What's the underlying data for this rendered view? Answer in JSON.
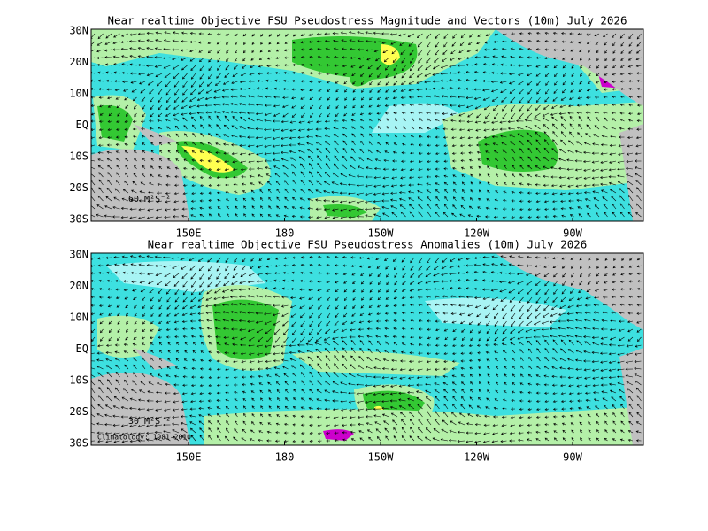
{
  "panels": [
    {
      "title": "Near realtime Objective FSU Pseudostress Magnitude and Vectors (10m) July 2026",
      "lat_labels": [
        "30N",
        "20N",
        "10N",
        "EQ",
        "10S",
        "20S",
        "30S"
      ],
      "lon_labels": [
        "150E",
        "180",
        "150W",
        "120W",
        "90W"
      ],
      "scale_label": "60 M²S⁻²"
    },
    {
      "title": "Near realtime Objective FSU Pseudostress Anomalies (10m) July 2026",
      "lat_labels": [
        "30N",
        "20N",
        "10N",
        "EQ",
        "10S",
        "20S",
        "30S"
      ],
      "lon_labels": [
        "150E",
        "180",
        "150W",
        "120W",
        "90W"
      ],
      "scale_label": "30 M²S⁻²",
      "climatology": "Climatology: 1981-2010"
    }
  ]
}
